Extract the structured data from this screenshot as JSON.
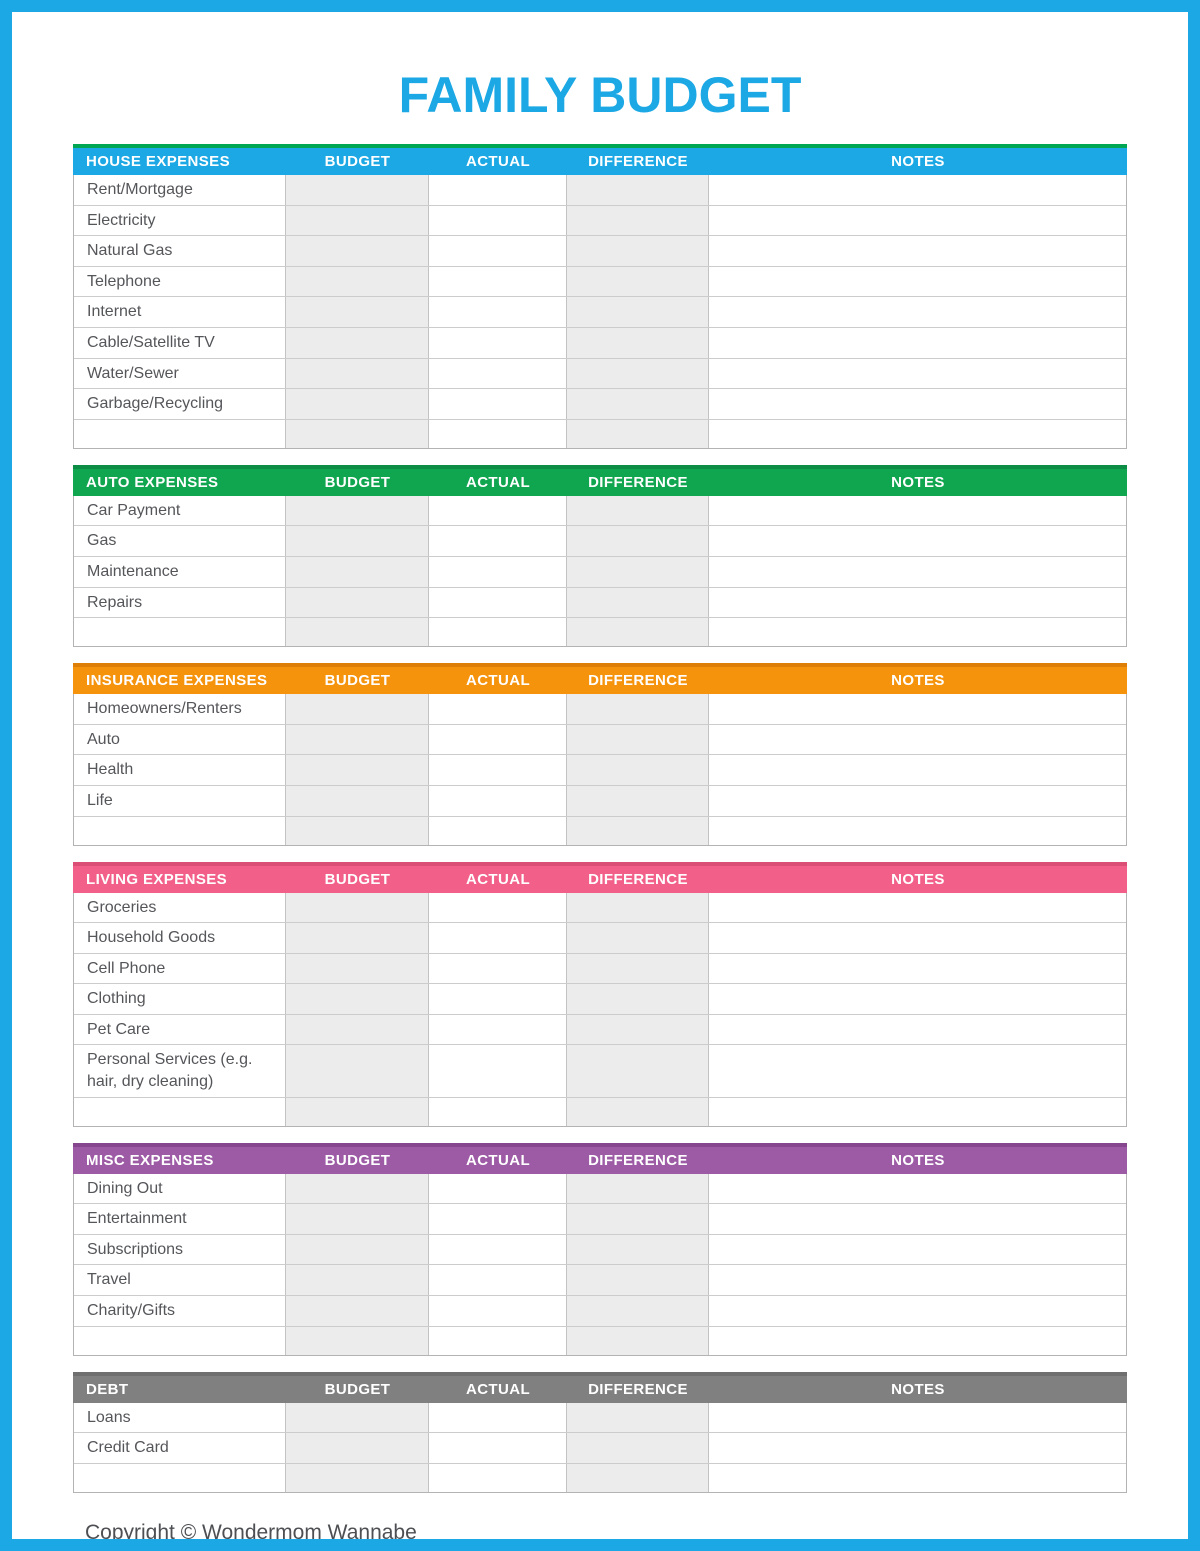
{
  "page": {
    "title": "FAMILY BUDGET",
    "footer": "Copyright © Wondermom Wannabe",
    "accent_color": "#1BA8E4",
    "shaded_cell_color": "#ECECEC"
  },
  "columns": [
    "BUDGET",
    "ACTUAL",
    "DIFFERENCE",
    "NOTES"
  ],
  "shaded_columns": [
    "BUDGET",
    "DIFFERENCE"
  ],
  "sections": [
    {
      "name": "HOUSE EXPENSES",
      "header_color": "#1BA8E4",
      "strip_color": "#00A651",
      "rows": [
        "Rent/Mortgage",
        "Electricity",
        "Natural Gas",
        "Telephone",
        "Internet",
        "Cable/Satellite TV",
        "Water/Sewer",
        "Garbage/Recycling",
        ""
      ]
    },
    {
      "name": "AUTO EXPENSES",
      "header_color": "#10A54F",
      "strip_color": "#0C8C44",
      "rows": [
        "Car Payment",
        "Gas",
        "Maintenance",
        "Repairs",
        ""
      ]
    },
    {
      "name": "INSURANCE EXPENSES",
      "header_color": "#F6930D",
      "strip_color": "#DD7F07",
      "rows": [
        "Homeowners/Renters",
        "Auto",
        "Health",
        "Life",
        ""
      ]
    },
    {
      "name": "LIVING EXPENSES",
      "header_color": "#F2608A",
      "strip_color": "#DB4E76",
      "rows": [
        "Groceries",
        "Household Goods",
        "Cell Phone",
        "Clothing",
        "Pet Care",
        "Personal Services (e.g. hair, dry cleaning)",
        ""
      ]
    },
    {
      "name": "MISC EXPENSES",
      "header_color": "#9D5BA6",
      "strip_color": "#87478F",
      "rows": [
        "Dining Out",
        "Entertainment",
        "Subscriptions",
        "Travel",
        "Charity/Gifts",
        ""
      ]
    },
    {
      "name": "DEBT",
      "header_color": "#808080",
      "strip_color": "#6F6F6F",
      "rows": [
        "Loans",
        "Credit Card",
        ""
      ]
    }
  ]
}
